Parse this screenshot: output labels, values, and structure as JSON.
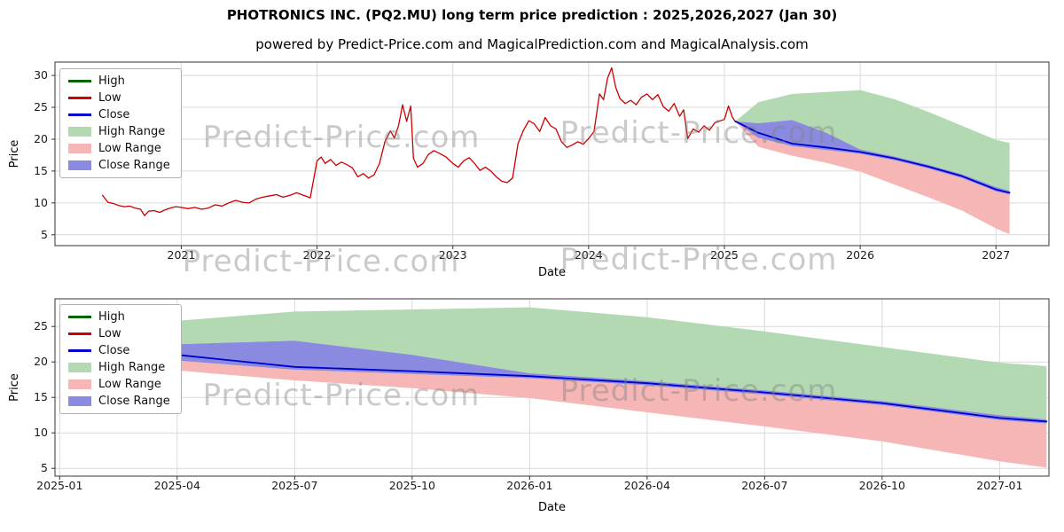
{
  "title": "PHOTRONICS INC. (PQ2.MU) long term price prediction : 2025,2026,2027 (Jan 30)",
  "subtitle": "powered by Predict-Price.com and MagicalPrediction.com and MagicalAnalysis.com",
  "watermark": {
    "text": "Predict-Price.com"
  },
  "colors": {
    "high_line": "#006400",
    "low_line": "#cc0000",
    "close_line": "#0000cd",
    "high_range_fill": "#b2d9b2",
    "low_range_fill": "#f7b6b6",
    "close_range_fill": "#8a8ae0",
    "grid": "#d9d9d9",
    "spine": "#333333"
  },
  "legend": {
    "items": [
      {
        "label": "High",
        "type": "line",
        "color": "#006400"
      },
      {
        "label": "Low",
        "type": "line",
        "color": "#cc0000"
      },
      {
        "label": "Close",
        "type": "line",
        "color": "#0000cd"
      },
      {
        "label": "High Range",
        "type": "patch",
        "color": "#b2d9b2"
      },
      {
        "label": "Low Range",
        "type": "patch",
        "color": "#f7b6b6"
      },
      {
        "label": "Close Range",
        "type": "patch",
        "color": "#8a8ae0"
      }
    ]
  },
  "chart_data": [
    {
      "type": "line",
      "title": "historical prices with 2025-2027 prediction ranges",
      "xlabel": "Date",
      "ylabel": "Price",
      "xlim": [
        2020.07,
        2027.39
      ],
      "ylim": [
        3.3,
        32.1
      ],
      "grid": true,
      "legend_position": "upper left",
      "xticks": [
        {
          "v": 2021,
          "label": "2021"
        },
        {
          "v": 2022,
          "label": "2022"
        },
        {
          "v": 2023,
          "label": "2023"
        },
        {
          "v": 2024,
          "label": "2024"
        },
        {
          "v": 2025,
          "label": "2025"
        },
        {
          "v": 2026,
          "label": "2026"
        },
        {
          "v": 2027,
          "label": "2027"
        }
      ],
      "yticks": [
        5,
        10,
        15,
        20,
        25,
        30
      ],
      "bands": [
        {
          "name": "High Range",
          "color": "#b2d9b2",
          "x": [
            2025.08,
            2025.25,
            2025.5,
            2025.75,
            2026.0,
            2026.25,
            2026.5,
            2026.75,
            2027.0,
            2027.1
          ],
          "upper": [
            22.8,
            25.8,
            27.1,
            27.4,
            27.7,
            26.3,
            24.3,
            22.1,
            19.9,
            19.4
          ],
          "lower": [
            22.8,
            22.5,
            23.0,
            21.0,
            18.4,
            17.3,
            16.0,
            14.5,
            12.5,
            11.9
          ]
        },
        {
          "name": "Low Range",
          "color": "#f7b6b6",
          "x": [
            2025.08,
            2025.25,
            2025.5,
            2025.75,
            2026.0,
            2026.25,
            2026.5,
            2026.75,
            2027.0,
            2027.1
          ],
          "upper": [
            22.8,
            20.2,
            18.9,
            18.3,
            17.7,
            16.7,
            15.4,
            13.9,
            11.8,
            11.3
          ],
          "lower": [
            22.8,
            18.8,
            17.4,
            16.3,
            14.9,
            12.9,
            10.9,
            8.8,
            6.0,
            5.1
          ]
        },
        {
          "name": "Close Range",
          "color": "#8a8ae0",
          "x": [
            2025.08,
            2025.25,
            2025.5,
            2025.75,
            2026.0,
            2026.25,
            2026.5,
            2026.75,
            2027.0,
            2027.1
          ],
          "upper": [
            22.8,
            22.5,
            23.0,
            21.0,
            18.4,
            17.3,
            16.0,
            14.5,
            12.5,
            11.9
          ],
          "lower": [
            22.8,
            20.2,
            18.9,
            18.3,
            17.7,
            16.7,
            15.4,
            13.9,
            11.8,
            11.3
          ]
        }
      ],
      "series": [
        {
          "name": "Low (historical)",
          "color": "#cc0000",
          "width": 1.3,
          "x": [
            2020.42,
            2020.46,
            2020.5,
            2020.54,
            2020.58,
            2020.62,
            2020.66,
            2020.7,
            2020.73,
            2020.76,
            2020.8,
            2020.84,
            2020.88,
            2020.92,
            2020.96,
            2021.0,
            2021.05,
            2021.1,
            2021.15,
            2021.2,
            2021.25,
            2021.3,
            2021.35,
            2021.4,
            2021.45,
            2021.5,
            2021.55,
            2021.6,
            2021.65,
            2021.7,
            2021.75,
            2021.8,
            2021.85,
            2021.9,
            2021.95,
            2022.0,
            2022.03,
            2022.06,
            2022.1,
            2022.14,
            2022.18,
            2022.22,
            2022.26,
            2022.3,
            2022.34,
            2022.38,
            2022.42,
            2022.46,
            2022.5,
            2022.54,
            2022.57,
            2022.6,
            2022.63,
            2022.66,
            2022.69,
            2022.71,
            2022.74,
            2022.78,
            2022.82,
            2022.86,
            2022.9,
            2022.95,
            2023.0,
            2023.04,
            2023.08,
            2023.12,
            2023.16,
            2023.2,
            2023.24,
            2023.28,
            2023.32,
            2023.36,
            2023.4,
            2023.44,
            2023.48,
            2023.52,
            2023.56,
            2023.6,
            2023.64,
            2023.68,
            2023.72,
            2023.76,
            2023.8,
            2023.84,
            2023.88,
            2023.92,
            2023.96,
            2024.0,
            2024.04,
            2024.08,
            2024.11,
            2024.14,
            2024.17,
            2024.2,
            2024.23,
            2024.27,
            2024.31,
            2024.35,
            2024.39,
            2024.43,
            2024.47,
            2024.51,
            2024.55,
            2024.59,
            2024.63,
            2024.67,
            2024.7,
            2024.73,
            2024.77,
            2024.81,
            2024.85,
            2024.89,
            2024.93,
            2025.0,
            2025.03,
            2025.06,
            2025.08
          ],
          "y": [
            11.2,
            10.1,
            9.9,
            9.6,
            9.4,
            9.5,
            9.2,
            9.0,
            8.0,
            8.7,
            8.8,
            8.5,
            8.9,
            9.2,
            9.4,
            9.3,
            9.1,
            9.3,
            9.0,
            9.2,
            9.7,
            9.5,
            10.0,
            10.4,
            10.1,
            10.0,
            10.6,
            10.9,
            11.1,
            11.3,
            10.9,
            11.2,
            11.6,
            11.2,
            10.8,
            16.6,
            17.2,
            16.2,
            16.8,
            15.9,
            16.4,
            16.0,
            15.5,
            14.1,
            14.6,
            13.9,
            14.4,
            16.2,
            19.6,
            21.3,
            20.2,
            22.1,
            25.4,
            22.8,
            25.2,
            17.0,
            15.6,
            16.2,
            17.6,
            18.2,
            17.8,
            17.2,
            16.2,
            15.6,
            16.6,
            17.1,
            16.2,
            15.1,
            15.6,
            15.0,
            14.1,
            13.4,
            13.2,
            13.9,
            19.3,
            21.4,
            22.9,
            22.4,
            21.2,
            23.4,
            22.1,
            21.6,
            19.6,
            18.7,
            19.1,
            19.6,
            19.2,
            20.1,
            21.2,
            27.1,
            26.2,
            29.6,
            31.2,
            28.1,
            26.4,
            25.6,
            26.1,
            25.4,
            26.6,
            27.1,
            26.2,
            27.0,
            25.1,
            24.4,
            25.6,
            23.6,
            24.6,
            20.1,
            21.6,
            21.1,
            22.1,
            21.4,
            22.6,
            23.1,
            25.2,
            23.4,
            22.8
          ]
        },
        {
          "name": "Close (prediction)",
          "color": "#0000cd",
          "width": 1.8,
          "x": [
            2025.08,
            2025.25,
            2025.5,
            2025.75,
            2026.0,
            2026.25,
            2026.5,
            2026.75,
            2027.0,
            2027.1
          ],
          "y": [
            22.8,
            21.0,
            19.3,
            18.7,
            18.0,
            17.0,
            15.7,
            14.2,
            12.1,
            11.6
          ]
        }
      ]
    },
    {
      "type": "line",
      "title": "2025-2027 prediction detail",
      "xlabel": "Date",
      "ylabel": "Price",
      "xlim": [
        2024.99,
        2027.105
      ],
      "ylim": [
        3.9,
        28.9
      ],
      "grid": true,
      "legend_position": "upper left",
      "xticks": [
        {
          "v": 2025.0,
          "label": "2025-01"
        },
        {
          "v": 2025.25,
          "label": "2025-04"
        },
        {
          "v": 2025.5,
          "label": "2025-07"
        },
        {
          "v": 2025.75,
          "label": "2025-10"
        },
        {
          "v": 2026.0,
          "label": "2026-01"
        },
        {
          "v": 2026.25,
          "label": "2026-04"
        },
        {
          "v": 2026.5,
          "label": "2026-07"
        },
        {
          "v": 2026.75,
          "label": "2026-10"
        },
        {
          "v": 2027.0,
          "label": "2027-01"
        }
      ],
      "yticks": [
        5,
        10,
        15,
        20,
        25
      ],
      "bands": [
        {
          "name": "High Range",
          "color": "#b2d9b2",
          "x": [
            2025.08,
            2025.25,
            2025.5,
            2025.75,
            2026.0,
            2026.25,
            2026.5,
            2026.75,
            2027.0,
            2027.1
          ],
          "upper": [
            22.8,
            25.8,
            27.1,
            27.4,
            27.7,
            26.3,
            24.3,
            22.1,
            19.9,
            19.4
          ],
          "lower": [
            22.8,
            22.5,
            23.0,
            21.0,
            18.4,
            17.3,
            16.0,
            14.5,
            12.5,
            11.9
          ]
        },
        {
          "name": "Low Range",
          "color": "#f7b6b6",
          "x": [
            2025.08,
            2025.25,
            2025.5,
            2025.75,
            2026.0,
            2026.25,
            2026.5,
            2026.75,
            2027.0,
            2027.1
          ],
          "upper": [
            22.8,
            20.2,
            18.9,
            18.3,
            17.7,
            16.7,
            15.4,
            13.9,
            11.8,
            11.3
          ],
          "lower": [
            22.8,
            18.8,
            17.4,
            16.3,
            14.9,
            12.9,
            10.9,
            8.8,
            6.0,
            5.1
          ]
        },
        {
          "name": "Close Range",
          "color": "#8a8ae0",
          "x": [
            2025.08,
            2025.25,
            2025.5,
            2025.75,
            2026.0,
            2026.25,
            2026.5,
            2026.75,
            2027.0,
            2027.1
          ],
          "upper": [
            22.8,
            22.5,
            23.0,
            21.0,
            18.4,
            17.3,
            16.0,
            14.5,
            12.5,
            11.9
          ],
          "lower": [
            22.8,
            20.2,
            18.9,
            18.3,
            17.7,
            16.7,
            15.4,
            13.9,
            11.8,
            11.3
          ]
        }
      ],
      "series": [
        {
          "name": "Close (prediction)",
          "color": "#0000cd",
          "width": 1.8,
          "x": [
            2025.08,
            2025.25,
            2025.5,
            2025.75,
            2026.0,
            2026.25,
            2026.5,
            2026.75,
            2027.0,
            2027.1
          ],
          "y": [
            22.8,
            21.0,
            19.3,
            18.7,
            18.0,
            17.0,
            15.7,
            14.2,
            12.1,
            11.6
          ]
        }
      ]
    }
  ]
}
